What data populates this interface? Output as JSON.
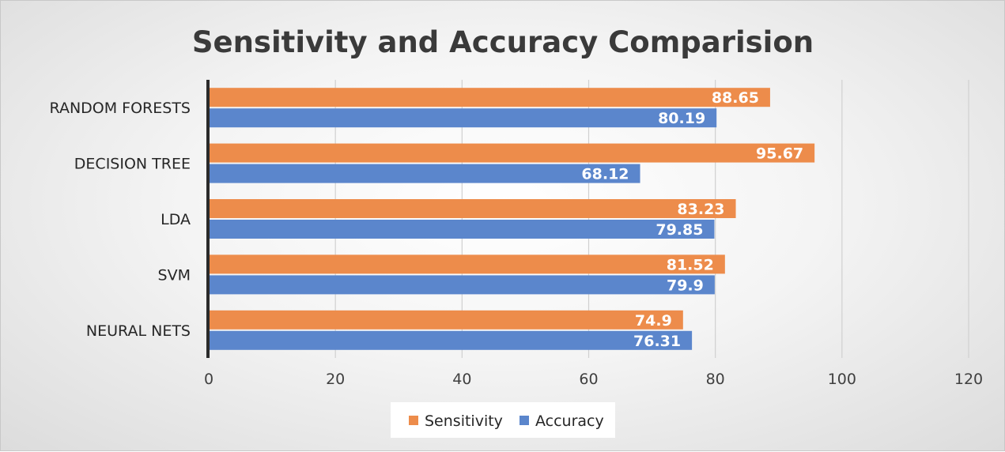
{
  "chart_data": {
    "type": "bar",
    "orientation": "horizontal",
    "title": "Sensitivity and Accuracy Comparision",
    "categories": [
      "RANDOM FORESTS",
      "DECISION TREE",
      "LDA",
      "SVM",
      "NEURAL NETS"
    ],
    "series": [
      {
        "name": "Sensitivity",
        "color": "#ED8C4B",
        "values": [
          88.65,
          95.67,
          83.23,
          81.52,
          74.9
        ],
        "labels": [
          "88.65",
          "95.67",
          "83.23",
          "81.52",
          "74.9"
        ]
      },
      {
        "name": "Accuracy",
        "color": "#5B86CC",
        "values": [
          80.19,
          68.12,
          79.85,
          79.9,
          76.31
        ],
        "labels": [
          "80.19",
          "68.12",
          "79.85",
          "79.9",
          "76.31"
        ]
      }
    ],
    "xlim": [
      0,
      120
    ],
    "xticks": [
      "0",
      "20",
      "40",
      "60",
      "80",
      "100",
      "120"
    ],
    "xlabel": "",
    "ylabel": "",
    "grid": true,
    "legend_position": "bottom"
  }
}
